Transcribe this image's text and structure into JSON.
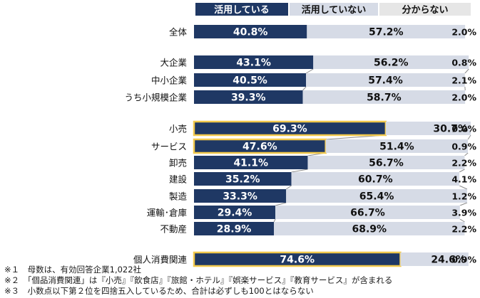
{
  "chart_data": {
    "type": "bar",
    "stacked": true,
    "orientation": "horizontal",
    "legend": [
      "活用している",
      "活用していない",
      "分からない"
    ],
    "legend_placement": "top",
    "colors": {
      "using": "#1f3864",
      "not_using": "#d6dbe6",
      "unknown": "#ffffff",
      "highlight_border": "#f2c94c",
      "connector": "#8c8c8c",
      "legend_unknown_bg": "#e6e6e6"
    },
    "categories": [
      "全体",
      "大企業",
      "中小企業",
      "うち小規模企業",
      "小売",
      "サービス",
      "卸売",
      "建設",
      "製造",
      "運輸･倉庫",
      "不動産",
      "個人消費関連"
    ],
    "highlighted": [
      "小売",
      "サービス",
      "個人消費関連"
    ],
    "series": [
      {
        "name": "活用している",
        "values": [
          40.8,
          43.1,
          40.5,
          39.3,
          69.3,
          47.6,
          41.1,
          35.2,
          33.3,
          29.4,
          28.9,
          74.6
        ]
      },
      {
        "name": "活用していない",
        "values": [
          57.2,
          56.2,
          57.4,
          58.7,
          30.7,
          51.4,
          56.7,
          60.7,
          65.4,
          66.7,
          68.9,
          24.6
        ]
      },
      {
        "name": "分からない",
        "values": [
          2.0,
          0.8,
          2.1,
          2.0,
          0.0,
          0.9,
          2.2,
          4.1,
          1.2,
          3.9,
          2.2,
          0.9
        ]
      }
    ],
    "value_labels": [
      [
        "40.8%",
        "57.2%",
        "2.0%"
      ],
      [
        "43.1%",
        "56.2%",
        "0.8%"
      ],
      [
        "40.5%",
        "57.4%",
        "2.1%"
      ],
      [
        "39.3%",
        "58.7%",
        "2.0%"
      ],
      [
        "69.3%",
        "30.7%",
        "0.0%"
      ],
      [
        "47.6%",
        "51.4%",
        "0.9%"
      ],
      [
        "41.1%",
        "56.7%",
        "2.2%"
      ],
      [
        "35.2%",
        "60.7%",
        "4.1%"
      ],
      [
        "33.3%",
        "65.4%",
        "1.2%"
      ],
      [
        "29.4%",
        "66.7%",
        "3.9%"
      ],
      [
        "28.9%",
        "68.9%",
        "2.2%"
      ],
      [
        "74.6%",
        "24.6%",
        "0.9%"
      ]
    ],
    "xlim": [
      0,
      100
    ]
  },
  "footnotes": [
    "※１　母数は、有効回答企業1,022社",
    "※２　「個品消費関連」は『小売』『飲食店』『旅館・ホテル』『娯楽サービス』『教育サービス』が含まれる",
    "※３　小数点以下第２位を四捨五入しているため、合計は必ずしも100とはならない"
  ]
}
